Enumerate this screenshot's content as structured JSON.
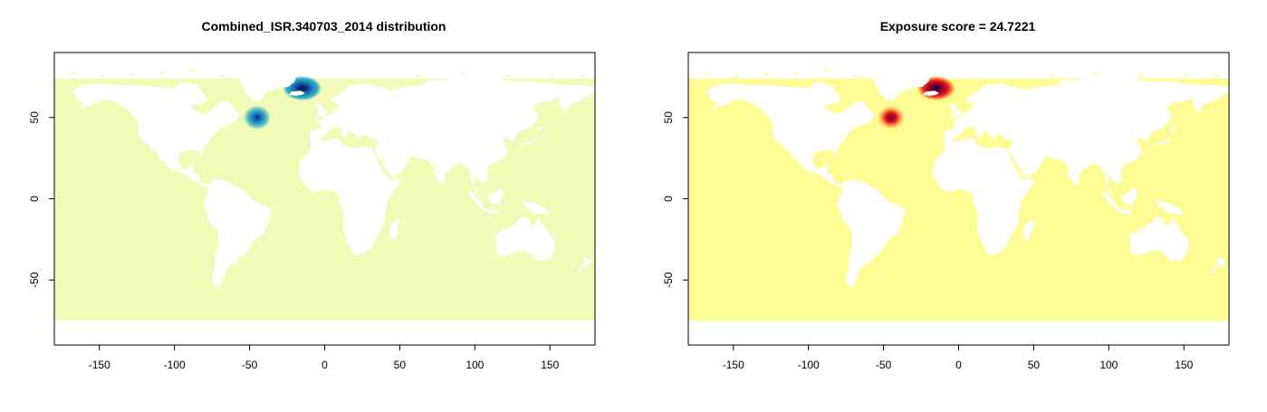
{
  "maps": [
    {
      "id": "distribution",
      "title": "Combined_ISR.340703_2014 distribution",
      "ocean_color": "#f1fab6",
      "hotspots": [
        {
          "lon": -45,
          "lat": 50,
          "intensity": 0.75
        },
        {
          "lon": -15,
          "lat": 68,
          "intensity": 1.0
        }
      ],
      "palette": [
        "#f1fab6",
        "#9ed6bb",
        "#41b6c4",
        "#1d91c0",
        "#225ea8",
        "#0c2c84",
        "#081d58"
      ]
    },
    {
      "id": "exposure",
      "title": "Exposure score = 24.7221",
      "ocean_color": "#fdfd96",
      "hotspots": [
        {
          "lon": -45,
          "lat": 50,
          "intensity": 0.75
        },
        {
          "lon": -15,
          "lat": 68,
          "intensity": 1.0
        }
      ],
      "palette": [
        "#fdfd96",
        "#fed976",
        "#fd8d3c",
        "#e31a1c",
        "#b10026",
        "#4a0040",
        "#0b0530"
      ]
    }
  ],
  "axes": {
    "x_ticks": [
      -150,
      -100,
      -50,
      0,
      50,
      100,
      150
    ],
    "y_ticks": [
      -50,
      0,
      50
    ],
    "xlim": [
      -180,
      180
    ],
    "ylim": [
      -90,
      90
    ]
  }
}
